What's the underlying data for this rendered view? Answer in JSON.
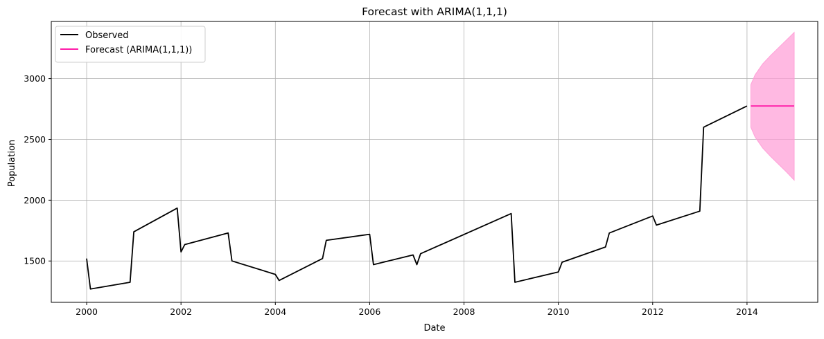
{
  "chart_data": {
    "type": "line",
    "title": "Forecast with ARIMA(1,1,1)",
    "xlabel": "Date",
    "ylabel": "Population",
    "xlim": [
      1999.25,
      2015.5
    ],
    "ylim": [
      1160,
      3470
    ],
    "x_ticks": [
      2000,
      2002,
      2004,
      2006,
      2008,
      2010,
      2012,
      2014
    ],
    "x_tick_labels": [
      "2000",
      "2002",
      "2004",
      "2006",
      "2008",
      "2010",
      "2012",
      "2014"
    ],
    "y_ticks": [
      1500,
      2000,
      2500,
      3000
    ],
    "y_tick_labels": [
      "1500",
      "2000",
      "2500",
      "3000"
    ],
    "grid": true,
    "legend_position": "top-left",
    "colors": {
      "observed": "#000000",
      "forecast": "#ff1aa8",
      "band": "#ff9bd6"
    },
    "series": [
      {
        "name": "Observed",
        "x": [
          2000.0,
          2000.08,
          2000.92,
          2001.0,
          2001.92,
          2002.0,
          2002.08,
          2003.0,
          2003.08,
          2004.0,
          2004.08,
          2005.0,
          2005.08,
          2006.0,
          2006.08,
          2006.92,
          2007.0,
          2007.08,
          2009.0,
          2009.08,
          2010.0,
          2010.08,
          2011.0,
          2011.08,
          2012.0,
          2012.08,
          2013.0,
          2013.08,
          2014.0
        ],
        "y": [
          1520,
          1270,
          1325,
          1740,
          1935,
          1575,
          1635,
          1730,
          1500,
          1390,
          1340,
          1520,
          1670,
          1720,
          1470,
          1550,
          1470,
          1560,
          1890,
          1325,
          1410,
          1490,
          1615,
          1730,
          1870,
          1795,
          1910,
          2600,
          2775
        ]
      },
      {
        "name": "Forecast (ARIMA(1,1,1))",
        "x": [
          2014.08,
          2014.25,
          2014.5,
          2014.75,
          2015.0
        ],
        "y": [
          2775,
          2775,
          2775,
          2775,
          2775
        ]
      }
    ],
    "confidence_band": {
      "x": [
        2014.08,
        2014.17,
        2014.33,
        2014.5,
        2014.67,
        2014.83,
        2015.0
      ],
      "upper": [
        2950,
        3030,
        3120,
        3190,
        3255,
        3315,
        3380
      ],
      "lower": [
        2600,
        2520,
        2430,
        2360,
        2295,
        2235,
        2165
      ]
    }
  }
}
